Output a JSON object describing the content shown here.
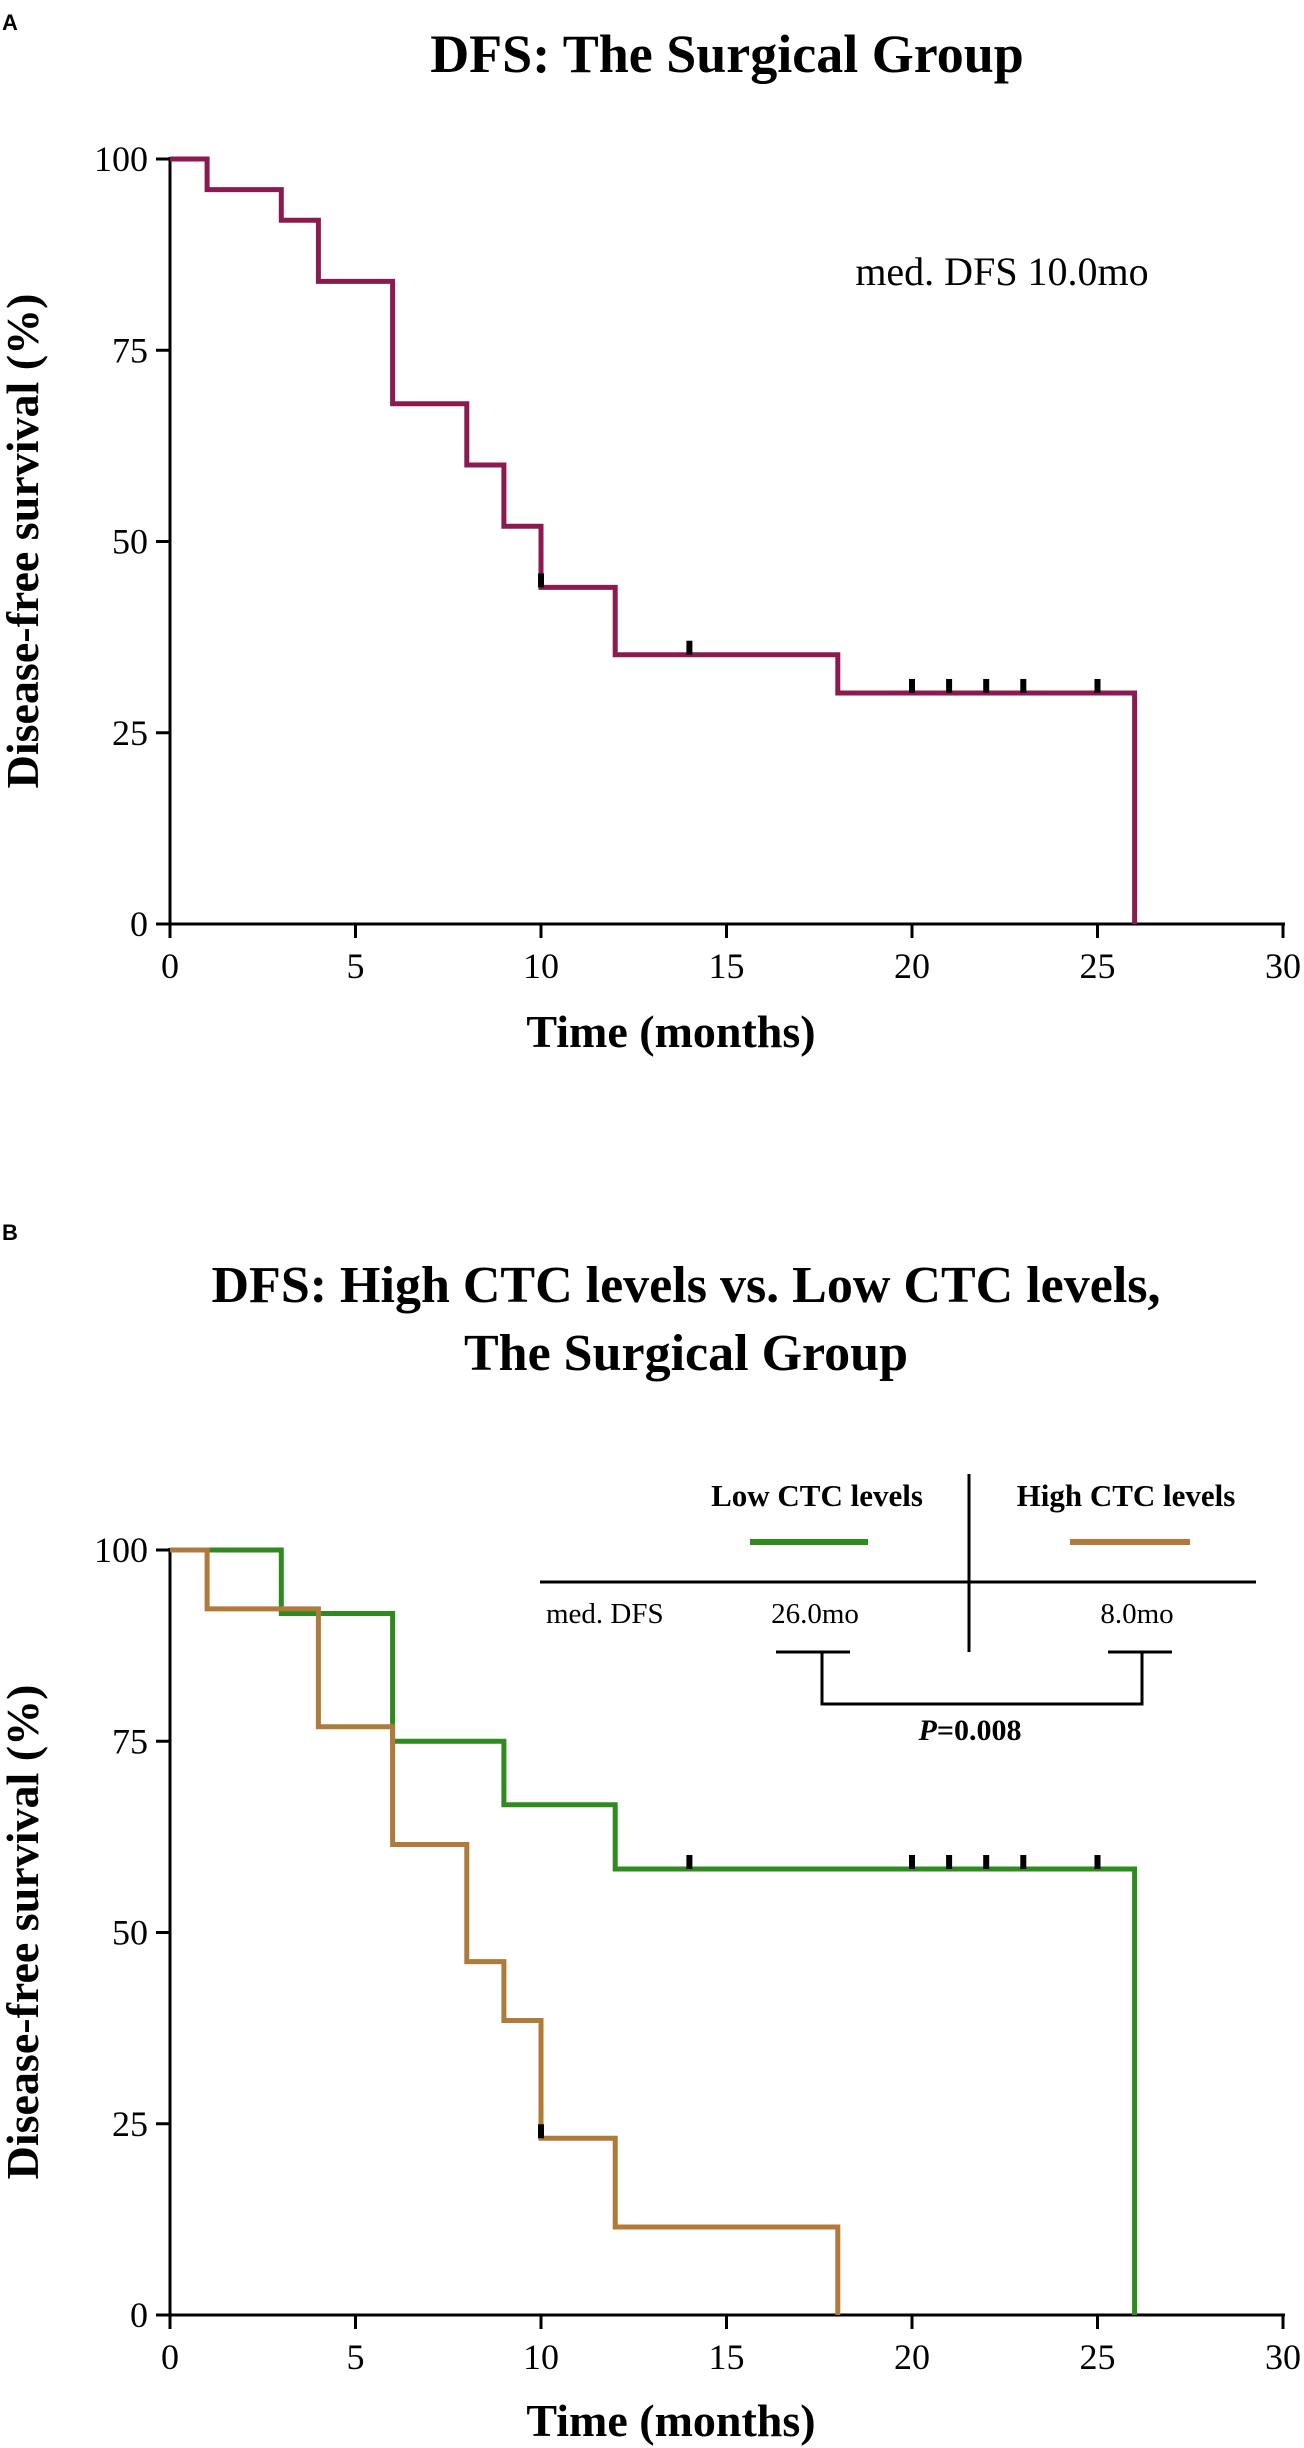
{
  "colors": {
    "surgical": "#8B1A4F",
    "low_ctc": "#2E8B1E",
    "high_ctc": "#B07A3A",
    "axis": "#000000"
  },
  "chart_data": [
    {
      "panel_label": "A",
      "type": "line",
      "step": true,
      "title": "DFS: The Surgical Group",
      "xlabel": "Time (months)",
      "ylabel": "Disease-free survival (%)",
      "xlim": [
        0,
        30
      ],
      "ylim": [
        0,
        100
      ],
      "xticks": [
        "0",
        "5",
        "10",
        "15",
        "20",
        "25",
        "30"
      ],
      "yticks": [
        "0",
        "25",
        "50",
        "75",
        "100"
      ],
      "annotation": "med. DFS 10.0mo",
      "series": [
        {
          "name": "Surgical Group",
          "x": [
            0,
            1,
            3,
            4,
            6,
            8,
            9,
            10,
            12,
            18,
            26
          ],
          "y": [
            100,
            96,
            92,
            84,
            68,
            60,
            52,
            44,
            35.2,
            30.2,
            0
          ],
          "censor_x": [
            10,
            14,
            20,
            21,
            22,
            23,
            25
          ],
          "censor_y": [
            44,
            35.2,
            30.2,
            30.2,
            30.2,
            30.2,
            30.2
          ]
        }
      ]
    },
    {
      "panel_label": "B",
      "type": "line",
      "step": true,
      "title_lines": [
        "DFS: High CTC levels vs. Low CTC levels,",
        "The Surgical Group"
      ],
      "xlabel": "Time (months)",
      "ylabel": "Disease-free survival (%)",
      "xlim": [
        0,
        30
      ],
      "ylim": [
        0,
        100
      ],
      "xticks": [
        "0",
        "5",
        "10",
        "15",
        "20",
        "25",
        "30"
      ],
      "yticks": [
        "0",
        "25",
        "50",
        "75",
        "100"
      ],
      "legend": {
        "low_label": "Low CTC levels",
        "high_label": "High CTC levels",
        "row_label": "med. DFS",
        "low_median": "26.0mo",
        "high_median": "8.0mo",
        "p_label": "P",
        "p_value": "=0.008"
      },
      "series": [
        {
          "name": "Low CTC levels",
          "x": [
            0,
            3,
            6,
            9,
            12,
            26
          ],
          "y": [
            100,
            91.7,
            75,
            66.7,
            58.3,
            0
          ],
          "censor_x": [
            14,
            20,
            21,
            22,
            23,
            25
          ],
          "censor_y": [
            58.3,
            58.3,
            58.3,
            58.3,
            58.3,
            58.3
          ]
        },
        {
          "name": "High CTC levels",
          "x": [
            0,
            1,
            4,
            6,
            8,
            9,
            10,
            12,
            18
          ],
          "y": [
            100,
            92.3,
            76.9,
            61.5,
            46.2,
            38.5,
            23.1,
            11.5,
            0
          ],
          "censor_x": [
            10
          ],
          "censor_y": [
            23.1
          ]
        }
      ]
    }
  ]
}
